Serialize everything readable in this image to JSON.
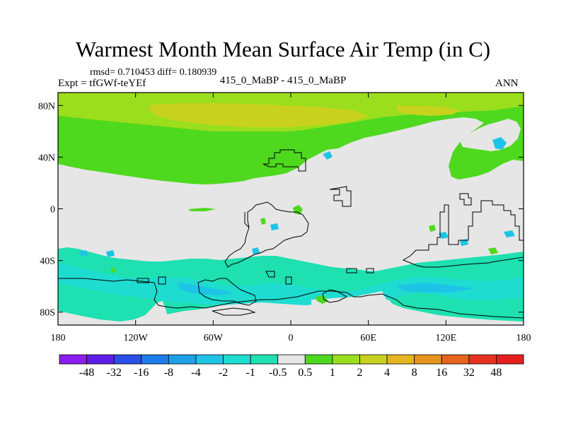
{
  "header": {
    "title": "Warmest Month Mean Surface Air Temp (in C)",
    "stats": "rmsd= 0.710453 diff= 0.180939",
    "expt": "Expt = tfGWf-teYEf",
    "comparison": "415_0_MaBP - 415_0_MaBP",
    "period": "ANN"
  },
  "map": {
    "lat_ticks": [
      {
        "label": "80N",
        "lat": 80
      },
      {
        "label": "40N",
        "lat": 40
      },
      {
        "label": "0",
        "lat": 0
      },
      {
        "label": "40S",
        "lat": -40
      },
      {
        "label": "80S",
        "lat": -80
      }
    ],
    "lon_ticks": [
      {
        "label": "180",
        "lon": -180
      },
      {
        "label": "120W",
        "lon": -120
      },
      {
        "label": "60W",
        "lon": -60
      },
      {
        "label": "0",
        "lon": 0
      },
      {
        "label": "60E",
        "lon": 60
      },
      {
        "label": "120E",
        "lon": 120
      },
      {
        "label": "180",
        "lon": 180
      }
    ],
    "lat_range": [
      -90,
      90
    ],
    "lon_range": [
      -180,
      180
    ]
  },
  "colorbar": {
    "labels": [
      "-48",
      "-32",
      "-16",
      "-8",
      "-4",
      "-2",
      "-1",
      "-0.5",
      "0.5",
      "1",
      "2",
      "4",
      "8",
      "16",
      "32",
      "48"
    ],
    "colors": [
      "#8a1ef0",
      "#5f1ee6",
      "#2a4ee8",
      "#1e7ce8",
      "#1ea0e6",
      "#1ec4e6",
      "#1edcd0",
      "#1ee0b0",
      "#e6e6e6",
      "#4ed81e",
      "#9ade1e",
      "#c8d21e",
      "#e6b41e",
      "#e6961e",
      "#e6641e",
      "#e6321e",
      "#e61e1e"
    ]
  },
  "palette": {
    "neutral": "#e6e6e6",
    "pos_small": "#4ed81e",
    "pos_mid": "#9ade1e",
    "pos_high": "#c8d21e",
    "neg_small": "#1ee0b0",
    "neg_mid": "#1edcd0",
    "neg_high": "#1ec4e6"
  }
}
